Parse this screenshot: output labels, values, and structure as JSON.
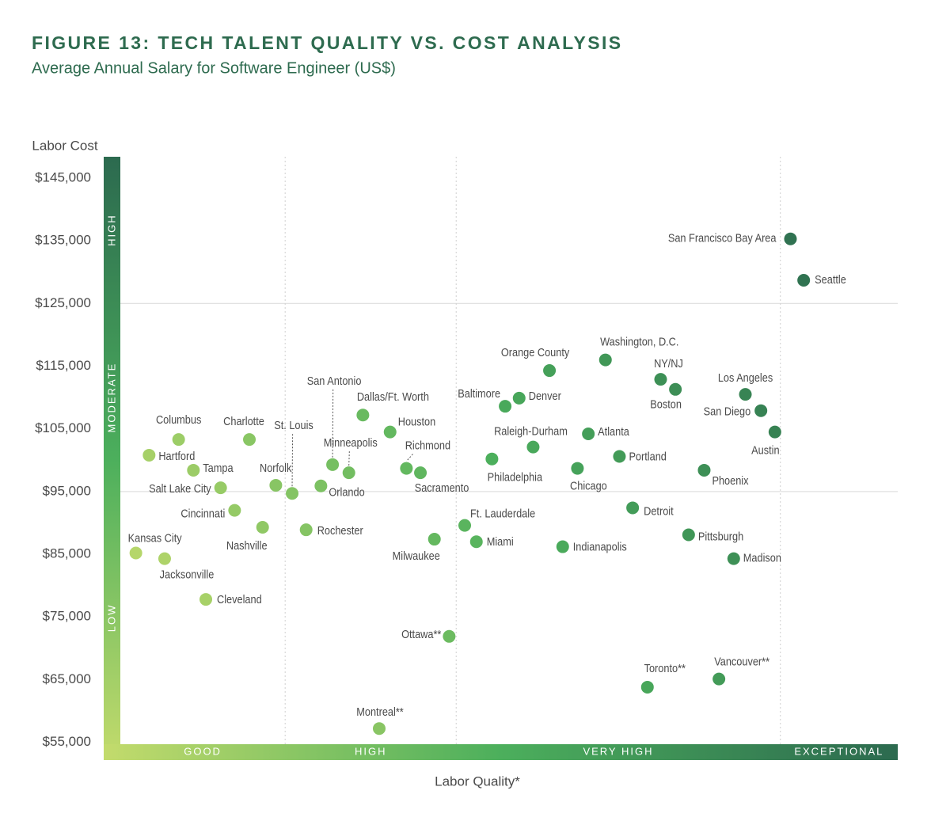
{
  "chart_data": {
    "type": "scatter",
    "title": "FIGURE 13: TECH TALENT QUALITY VS. COST ANALYSIS",
    "subtitle": "Average Annual Salary for Software Engineer (US$)",
    "y_label": "Labor Cost",
    "x_label": "Labor Quality*",
    "labels": [
      "San Francisco Bay Area",
      "Seattle",
      "Washington, D.C.",
      "Orange County",
      "NY/NJ",
      "Boston",
      "Los Angeles",
      "San Diego",
      "Austin",
      "Baltimore",
      "Denver",
      "Atlanta",
      "Raleigh-Durham",
      "Portland",
      "Chicago",
      "Philadelphia",
      "Phoenix",
      "Detroit",
      "Pittsburgh",
      "Madison",
      "Indianapolis",
      "Ft. Lauderdale",
      "Miami",
      "Milwaukee",
      "Ottawa**",
      "Toronto**",
      "Vancouver**",
      "Montreal**",
      "San Antonio",
      "Dallas/Ft. Worth",
      "Houston",
      "Minneapolis",
      "Richmond",
      "Sacramento",
      "Orlando",
      "St. Louis",
      "Norfolk",
      "Rochester",
      "Charlotte",
      "Columbus",
      "Hartford",
      "Tampa",
      "Salt Lake City",
      "Cincinnati",
      "Nashville",
      "Kansas City",
      "Jacksonville",
      "Cleveland"
    ],
    "x": [
      86.2,
      87.9,
      62.4,
      55.2,
      69.5,
      71.4,
      80.4,
      82.4,
      84.2,
      49.5,
      51.3,
      60.2,
      53.1,
      64.2,
      58.8,
      47.8,
      75.1,
      65.9,
      73.1,
      78.9,
      56.9,
      44.3,
      45.8,
      40.4,
      42.3,
      67.8,
      77.0,
      33.3,
      27.3,
      31.2,
      34.7,
      29.4,
      36.8,
      38.6,
      25.8,
      22.1,
      20.0,
      23.9,
      16.6,
      7.5,
      3.7,
      9.4,
      12.9,
      14.7,
      18.3,
      2.0,
      5.7,
      11.0
    ],
    "values": [
      135300,
      128700,
      116000,
      114300,
      112900,
      111300,
      110500,
      107900,
      104500,
      108600,
      109900,
      104200,
      102100,
      100600,
      98700,
      100200,
      98400,
      92400,
      88100,
      84300,
      86200,
      89600,
      87000,
      87400,
      71900,
      63800,
      65100,
      57200,
      99300,
      107200,
      104500,
      98000,
      98700,
      98000,
      95900,
      94700,
      96000,
      88900,
      103300,
      103300,
      100800,
      98400,
      95600,
      92000,
      89300,
      85200,
      84300,
      77800
    ],
    "xlim": [
      0,
      100
    ],
    "ylim": [
      54700,
      148400
    ],
    "yticks": [
      {
        "value": 55000,
        "label": "$55,000"
      },
      {
        "value": 65000,
        "label": "$65,000"
      },
      {
        "value": 75000,
        "label": "$75,000"
      },
      {
        "value": 85000,
        "label": "$85,000"
      },
      {
        "value": 95000,
        "label": "$95,000"
      },
      {
        "value": 105000,
        "label": "$105,000"
      },
      {
        "value": 115000,
        "label": "$115,000"
      },
      {
        "value": 125000,
        "label": "$125,000"
      },
      {
        "value": 135000,
        "label": "$135,000"
      },
      {
        "value": 145000,
        "label": "$145,000"
      }
    ],
    "x_categories": [
      "GOOD",
      "HIGH",
      "VERY HIGH",
      "EXCEPTIONAL"
    ],
    "x_category_bounds": [
      21.2,
      43.2,
      84.9
    ],
    "y_categories": [
      "LOW",
      "MODERATE",
      "HIGH"
    ],
    "y_category_bounds": [
      95000,
      125000
    ],
    "colors": [
      "#c3db6c",
      "#4caf5c",
      "#2c6a4f"
    ],
    "title_color": "#2e6b4f"
  }
}
